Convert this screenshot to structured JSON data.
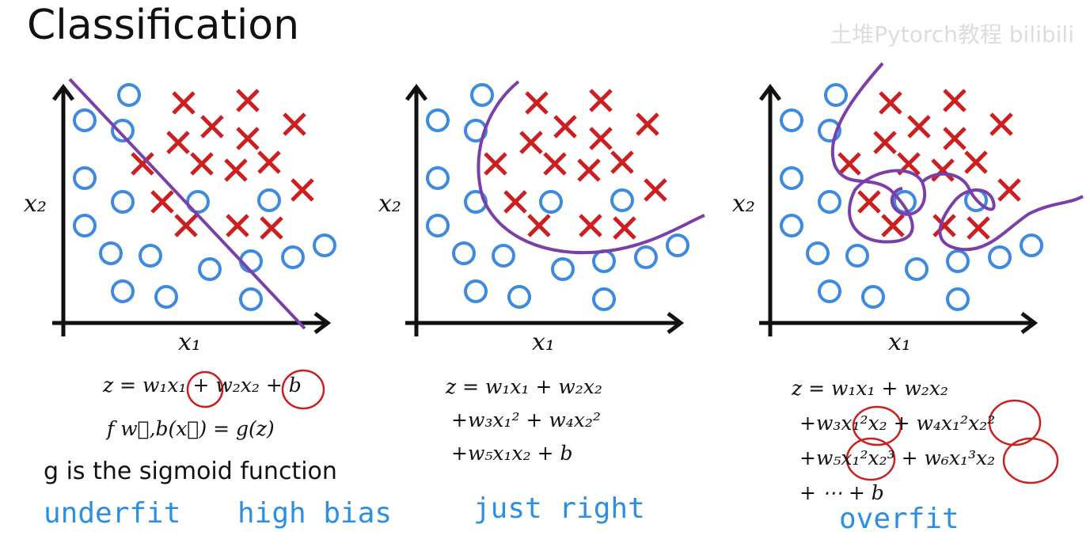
{
  "header": {
    "title": "Classification",
    "watermark": "土堆Pytorch教程 bilibili"
  },
  "panels": [
    {
      "x_label": "x₁",
      "y_label": "x₂",
      "formula": [
        "z = w₁x₁ + w₂x₂ + b",
        "f w⃗,b(x⃗) = g(z)"
      ],
      "note": "g is the sigmoid function",
      "captions": [
        "underfit",
        "high bias"
      ]
    },
    {
      "x_label": "x₁",
      "y_label": "x₂",
      "formula": [
        "z = w₁x₁ + w₂x₂",
        "+w₃x₁² + w₄x₂²",
        "+w₅x₁x₂ + b"
      ],
      "captions": [
        "just right"
      ]
    },
    {
      "x_label": "x₁",
      "y_label": "x₂",
      "formula": [
        "z = w₁x₁ + w₂x₂",
        "+w₃x₁²x₂ + w₄x₁²x₂²",
        "+w₅x₁²x₂³ + w₆x₁³x₂",
        "+ ⋯ + b"
      ],
      "captions": [
        "overfit"
      ]
    }
  ]
}
